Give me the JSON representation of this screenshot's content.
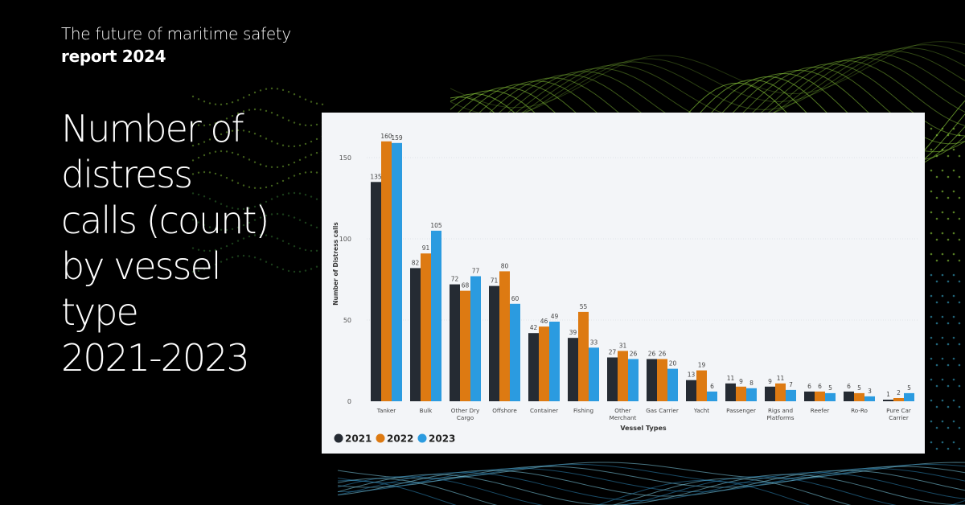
{
  "header": {
    "line1": "The future of maritime safety",
    "line2": "report 2024"
  },
  "headline": {
    "lines": [
      "Number of",
      "distress",
      "calls (count)",
      "by vessel",
      "type",
      "2021-2023"
    ]
  },
  "colors": {
    "2021": "#252b33",
    "2022": "#dd7a12",
    "2023": "#2b9be0",
    "panel_bg": "#f3f5f8",
    "accent_green": "#8fd13c"
  },
  "chart_data": {
    "type": "bar",
    "xlabel": "Vessel Types",
    "ylabel": "Number of Distress calls",
    "ylim": [
      0,
      160
    ],
    "yticks": [
      0,
      50,
      100,
      150
    ],
    "grid": true,
    "legend_placement": "bottom-left",
    "categories": [
      [
        "Tanker"
      ],
      [
        "Bulk"
      ],
      [
        "Other Dry",
        "Cargo"
      ],
      [
        "Offshore"
      ],
      [
        "Container"
      ],
      [
        "Fishing"
      ],
      [
        "Other",
        "Merchant"
      ],
      [
        "Gas Carrier"
      ],
      [
        "Yacht"
      ],
      [
        "Passenger"
      ],
      [
        "Rigs and",
        "Platforms"
      ],
      [
        "Reefer"
      ],
      [
        "Ro-Ro"
      ],
      [
        "Pure Car",
        "Carrier"
      ]
    ],
    "series": [
      {
        "name": "2021",
        "values": [
          135,
          82,
          72,
          71,
          42,
          39,
          27,
          26,
          13,
          11,
          9,
          6,
          6,
          1
        ]
      },
      {
        "name": "2022",
        "values": [
          160,
          91,
          68,
          80,
          46,
          55,
          31,
          26,
          19,
          9,
          11,
          6,
          5,
          2
        ]
      },
      {
        "name": "2023",
        "values": [
          159,
          105,
          77,
          60,
          49,
          33,
          26,
          20,
          6,
          8,
          7,
          5,
          3,
          5
        ]
      }
    ]
  }
}
